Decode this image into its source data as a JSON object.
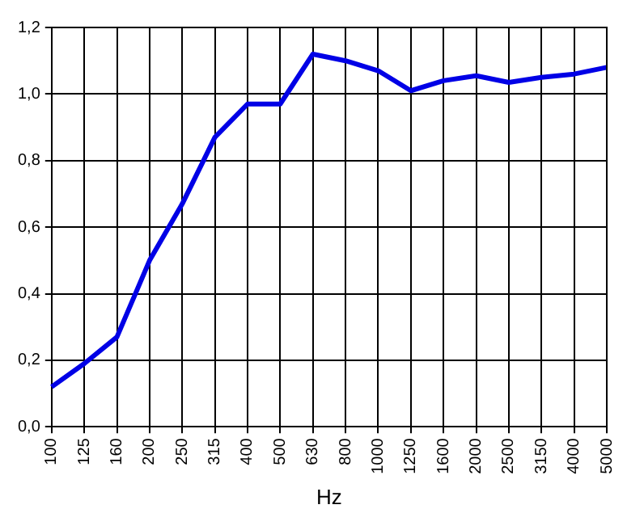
{
  "chart_data": {
    "type": "line",
    "xlabel": "Hz",
    "categories": [
      "100",
      "125",
      "160",
      "200",
      "250",
      "315",
      "400",
      "500",
      "630",
      "800",
      "1000",
      "1250",
      "1600",
      "2000",
      "2500",
      "3150",
      "4000",
      "5000"
    ],
    "series": [
      {
        "color": "#0000e6",
        "values": [
          0.12,
          0.19,
          0.27,
          0.5,
          0.67,
          0.87,
          0.97,
          0.97,
          1.12,
          1.1,
          1.07,
          1.01,
          1.04,
          1.055,
          1.035,
          1.05,
          1.06,
          1.08
        ]
      }
    ],
    "ylim": [
      0,
      1.2
    ],
    "yticks": [
      {
        "value": 0,
        "label": "0,0"
      },
      {
        "value": 0.2,
        "label": "0,2"
      },
      {
        "value": 0.4,
        "label": "0,4"
      },
      {
        "value": 0.6,
        "label": "0,6"
      },
      {
        "value": 0.8,
        "label": "0,8"
      },
      {
        "value": 1,
        "label": "1,0"
      },
      {
        "value": 1.2,
        "label": "1,2"
      }
    ],
    "grid": true,
    "legend": false,
    "marker": "none",
    "line_style": "solid"
  }
}
